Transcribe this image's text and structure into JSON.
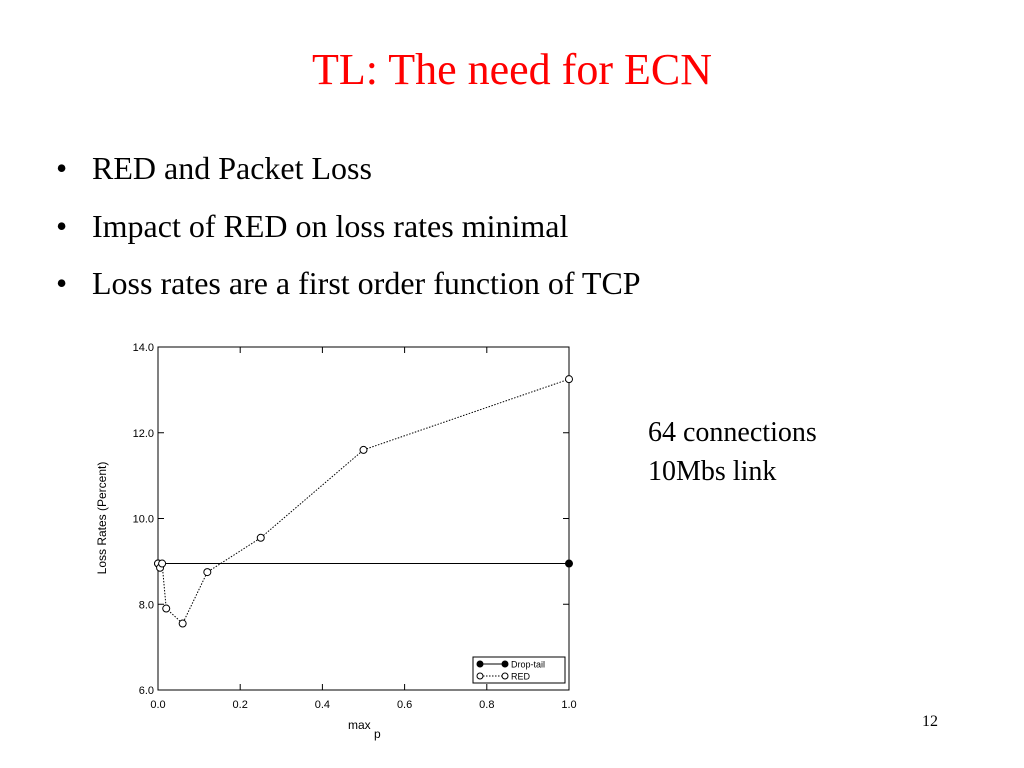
{
  "slide": {
    "title": "TL: The need for ECN",
    "bullets": [
      "RED and Packet Loss",
      "Impact of RED on loss rates minimal",
      "Loss rates are a first order function of TCP"
    ],
    "note": [
      "64 connections",
      "10Mbs link"
    ],
    "page_number": "12"
  },
  "chart_data": {
    "type": "line",
    "x_label": {
      "text": "max",
      "subscript": "p"
    },
    "y_label": "Loss Rates (Percent)",
    "xlim": [
      0,
      1
    ],
    "ylim": [
      6,
      14
    ],
    "xticks": [
      {
        "value": 0,
        "label": "0.0"
      },
      {
        "value": 0.2,
        "label": "0.2"
      },
      {
        "value": 0.4,
        "label": "0.4"
      },
      {
        "value": 0.6,
        "label": "0.6"
      },
      {
        "value": 0.8,
        "label": "0.8"
      },
      {
        "value": 1,
        "label": "1.0"
      }
    ],
    "yticks": [
      {
        "value": 6,
        "label": "6.0"
      },
      {
        "value": 8,
        "label": "8.0"
      },
      {
        "value": 10,
        "label": "10.0"
      },
      {
        "value": 12,
        "label": "12.0"
      },
      {
        "value": 14,
        "label": "14.0"
      }
    ],
    "grid": false,
    "legend": "lower right",
    "series": [
      {
        "name": "Drop-tail",
        "color": "#000000",
        "marker": "filled",
        "dashed": false,
        "x": [
          0,
          1
        ],
        "values": [
          8.95,
          8.95
        ]
      },
      {
        "name": "RED",
        "color": "#000000",
        "marker": "open",
        "dashed": true,
        "x": [
          0,
          0.005,
          0.01,
          0.02,
          0.06,
          0.12,
          0.25,
          0.5,
          1
        ],
        "values": [
          8.95,
          8.85,
          8.95,
          7.9,
          7.55,
          8.75,
          9.55,
          11.6,
          13.25
        ]
      }
    ]
  }
}
